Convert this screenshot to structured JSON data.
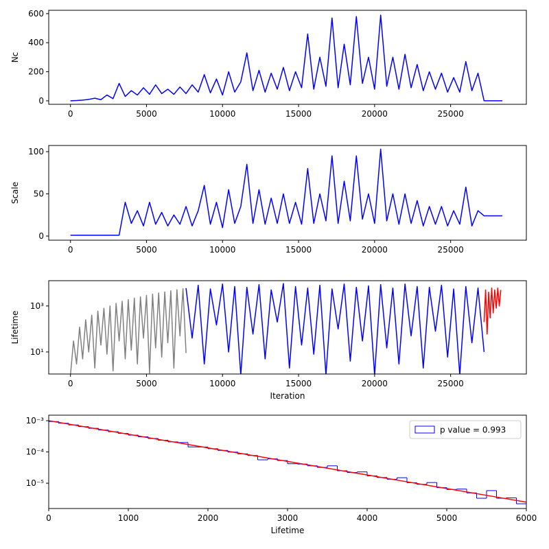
{
  "chart_data": [
    {
      "type": "line",
      "ylabel": "Nc",
      "xlim": [
        -1430,
        29980
      ],
      "xticks": [
        0,
        5000,
        10000,
        15000,
        20000,
        25000
      ],
      "ylim": [
        -24,
        623
      ],
      "yticks": [
        0,
        200,
        400,
        600
      ],
      "series": [
        {
          "color": "blue",
          "x": [
            0,
            400,
            800,
            1200,
            1600,
            2000,
            2400,
            2800,
            3200,
            3600,
            4000,
            4400,
            4800,
            5200,
            5600,
            6000,
            6400,
            6800,
            7200,
            7600,
            8000,
            8400,
            8800,
            9200,
            9600,
            10000,
            10400,
            10800,
            11200,
            11600,
            12000,
            12400,
            12800,
            13200,
            13600,
            14000,
            14400,
            14800,
            15200,
            15600,
            16000,
            16400,
            16800,
            17200,
            17600,
            18000,
            18400,
            18800,
            19200,
            19600,
            20000,
            20400,
            20800,
            21200,
            21600,
            22000,
            22400,
            22800,
            23200,
            23600,
            24000,
            24400,
            24800,
            25200,
            25600,
            26000,
            26400,
            26800,
            27200,
            27600,
            28000,
            28400
          ],
          "values": [
            0,
            2,
            5,
            10,
            18,
            8,
            40,
            15,
            120,
            30,
            70,
            40,
            90,
            45,
            110,
            50,
            80,
            45,
            95,
            50,
            110,
            60,
            180,
            55,
            150,
            40,
            200,
            60,
            130,
            330,
            70,
            210,
            60,
            190,
            80,
            230,
            70,
            200,
            90,
            460,
            80,
            300,
            100,
            570,
            90,
            390,
            110,
            580,
            120,
            300,
            80,
            590,
            100,
            300,
            80,
            320,
            90,
            250,
            70,
            200,
            80,
            190,
            60,
            160,
            60,
            270,
            70,
            190,
            0,
            0,
            0,
            0
          ]
        }
      ]
    },
    {
      "type": "line",
      "ylabel": "Scale",
      "xlim": [
        -1430,
        29980
      ],
      "xticks": [
        0,
        5000,
        10000,
        15000,
        20000,
        25000
      ],
      "ylim": [
        -4.9,
        107.3
      ],
      "yticks": [
        0,
        50,
        100
      ],
      "series": [
        {
          "color": "blue",
          "x": [
            0,
            400,
            800,
            1200,
            1600,
            2000,
            2400,
            2800,
            3200,
            3600,
            4000,
            4400,
            4800,
            5200,
            5600,
            6000,
            6400,
            6800,
            7200,
            7600,
            8000,
            8400,
            8800,
            9200,
            9600,
            10000,
            10400,
            10800,
            11200,
            11600,
            12000,
            12400,
            12800,
            13200,
            13600,
            14000,
            14400,
            14800,
            15200,
            15600,
            16000,
            16400,
            16800,
            17200,
            17600,
            18000,
            18400,
            18800,
            19200,
            19600,
            20000,
            20400,
            20800,
            21200,
            21600,
            22000,
            22400,
            22800,
            23200,
            23600,
            24000,
            24400,
            24800,
            25200,
            25600,
            26000,
            26400,
            26800,
            27200,
            27600,
            28000,
            28400
          ],
          "values": [
            1,
            1,
            1,
            1,
            1,
            1,
            1,
            1,
            1,
            40,
            15,
            30,
            12,
            40,
            14,
            28,
            12,
            25,
            14,
            35,
            12,
            30,
            60,
            14,
            40,
            10,
            55,
            15,
            35,
            85,
            15,
            55,
            14,
            45,
            15,
            50,
            15,
            40,
            14,
            80,
            15,
            50,
            18,
            95,
            15,
            65,
            18,
            95,
            20,
            50,
            15,
            103,
            18,
            50,
            14,
            50,
            15,
            42,
            12,
            35,
            14,
            35,
            12,
            30,
            14,
            58,
            12,
            30,
            24,
            24,
            24,
            24
          ]
        }
      ]
    },
    {
      "type": "line",
      "ylabel": "Lifetime",
      "xlabel": "Iteration",
      "log_y": true,
      "xlim": [
        -1430,
        29980
      ],
      "xticks": [
        0,
        5000,
        10000,
        15000,
        20000,
        25000
      ],
      "ylim": [
        1.1,
        12600
      ],
      "yticks": [
        {
          "value": 10,
          "label": "10¹"
        },
        {
          "value": 1000,
          "label": "10³"
        }
      ],
      "series": [
        {
          "color": "gray",
          "x": [
            0,
            200,
            400,
            600,
            800,
            1000,
            1200,
            1400,
            1600,
            1800,
            2000,
            2200,
            2400,
            2600,
            2800,
            3000,
            3200,
            3400,
            3600,
            3800,
            4000,
            4200,
            4400,
            4600,
            4800,
            5000,
            5200,
            5400,
            5600,
            5800,
            6000,
            6200,
            6400,
            6600,
            6800,
            7000,
            7200,
            7400,
            7600
          ],
          "values": [
            1,
            30,
            3,
            120,
            5,
            250,
            10,
            400,
            2,
            600,
            20,
            800,
            8,
            1000,
            1.5,
            1300,
            30,
            1600,
            5,
            1900,
            12,
            2200,
            3,
            2500,
            40,
            2900,
            1.2,
            3300,
            15,
            3700,
            6,
            4100,
            25,
            4600,
            2,
            5100,
            50,
            5600,
            9
          ]
        },
        {
          "color": "blue",
          "x": [
            7600,
            8000,
            8400,
            8800,
            9200,
            9600,
            10000,
            10400,
            10800,
            11200,
            11600,
            12000,
            12400,
            12800,
            13200,
            13600,
            14000,
            14400,
            14800,
            15200,
            15600,
            16000,
            16400,
            16800,
            17200,
            17600,
            18000,
            18400,
            18800,
            19200,
            19600,
            20000,
            20400,
            20800,
            21200,
            21600,
            22000,
            22400,
            22800,
            23200,
            23600,
            24000,
            24400,
            24800,
            25200,
            25600,
            26000,
            26400,
            26800,
            27200
          ],
          "values": [
            6000,
            40,
            8000,
            3,
            5500,
            150,
            9000,
            10,
            7000,
            1,
            6500,
            60,
            8500,
            5,
            5000,
            200,
            9500,
            2,
            7000,
            20,
            6000,
            8,
            8000,
            1,
            5500,
            100,
            9000,
            4,
            6500,
            30,
            7500,
            1,
            8500,
            15,
            6000,
            3,
            9000,
            50,
            7000,
            2,
            6500,
            80,
            8000,
            6,
            5500,
            1,
            7000,
            25,
            6000,
            10
          ]
        },
        {
          "color": "red",
          "x": [
            27200,
            27300,
            27400,
            27500,
            27600,
            27700,
            27800,
            27900,
            28000,
            28100,
            28200,
            28300
          ],
          "values": [
            200,
            5000,
            60,
            4000,
            300,
            6000,
            500,
            5000,
            800,
            6000,
            1000,
            5000
          ]
        }
      ]
    },
    {
      "type": "histogram",
      "xlabel": "Lifetime",
      "log_y": true,
      "name": "p value = 0.993",
      "color": "blue",
      "xlim": [
        0,
        6000
      ],
      "xticks": [
        0,
        1000,
        2000,
        3000,
        4000,
        5000,
        6000
      ],
      "ylim": [
        1.55e-06,
        0.0015
      ],
      "yticks": [
        {
          "value": 1e-05,
          "label": "10⁻⁵"
        },
        {
          "value": 0.0001,
          "label": "10⁻⁴"
        },
        {
          "value": 0.001,
          "label": "10⁻³"
        }
      ],
      "bins": [
        0,
        125,
        250,
        375,
        500,
        625,
        750,
        875,
        1000,
        1125,
        1250,
        1375,
        1500,
        1625,
        1750,
        1875,
        2000,
        2125,
        2250,
        2375,
        2500,
        2625,
        2750,
        2875,
        3000,
        3125,
        3250,
        3375,
        3500,
        3625,
        3750,
        3875,
        4000,
        4125,
        4250,
        4375,
        4500,
        4625,
        4750,
        4875,
        5000,
        5125,
        5250,
        5375,
        5500,
        5625,
        5750,
        5875,
        6000
      ],
      "values": [
        0.000939,
        0.000829,
        0.000731,
        0.000645,
        0.00057,
        0.000503,
        0.000444,
        0.000391,
        0.000345,
        0.000305,
        0.000269,
        0.000237,
        0.00021,
        0.0002,
        0.000145,
        0.000144,
        0.000127,
        0.000112,
        9.9e-05,
        8.7e-05,
        7.7e-05,
        5.6e-05,
        6e-05,
        5.3e-05,
        4.2e-05,
        4.1e-05,
        3.6e-05,
        3.2e-05,
        3.6e-05,
        2.5e-05,
        2.2e-05,
        2.3e-05,
        1.72e-05,
        1.52e-05,
        1.34e-05,
        1.5e-05,
        1.04e-05,
        9.2e-06,
        1.05e-05,
        7.2e-06,
        6.3e-06,
        6.5e-06,
        4.9e-06,
        3.3e-06,
        5.8e-06,
        3.3e-06,
        3.4e-06,
        2.2e-06
      ],
      "fit": {
        "color": "red",
        "x": [
          0,
          500,
          1000,
          1500,
          2000,
          2500,
          3000,
          3500,
          4000,
          4500,
          5000,
          5500,
          6000
        ],
        "values": [
          0.001,
          0.000607,
          0.000368,
          0.000223,
          0.000135,
          8.21e-05,
          4.98e-05,
          3.02e-05,
          1.83e-05,
          1.11e-05,
          6.74e-06,
          4.09e-06,
          2.48e-06
        ]
      }
    }
  ]
}
